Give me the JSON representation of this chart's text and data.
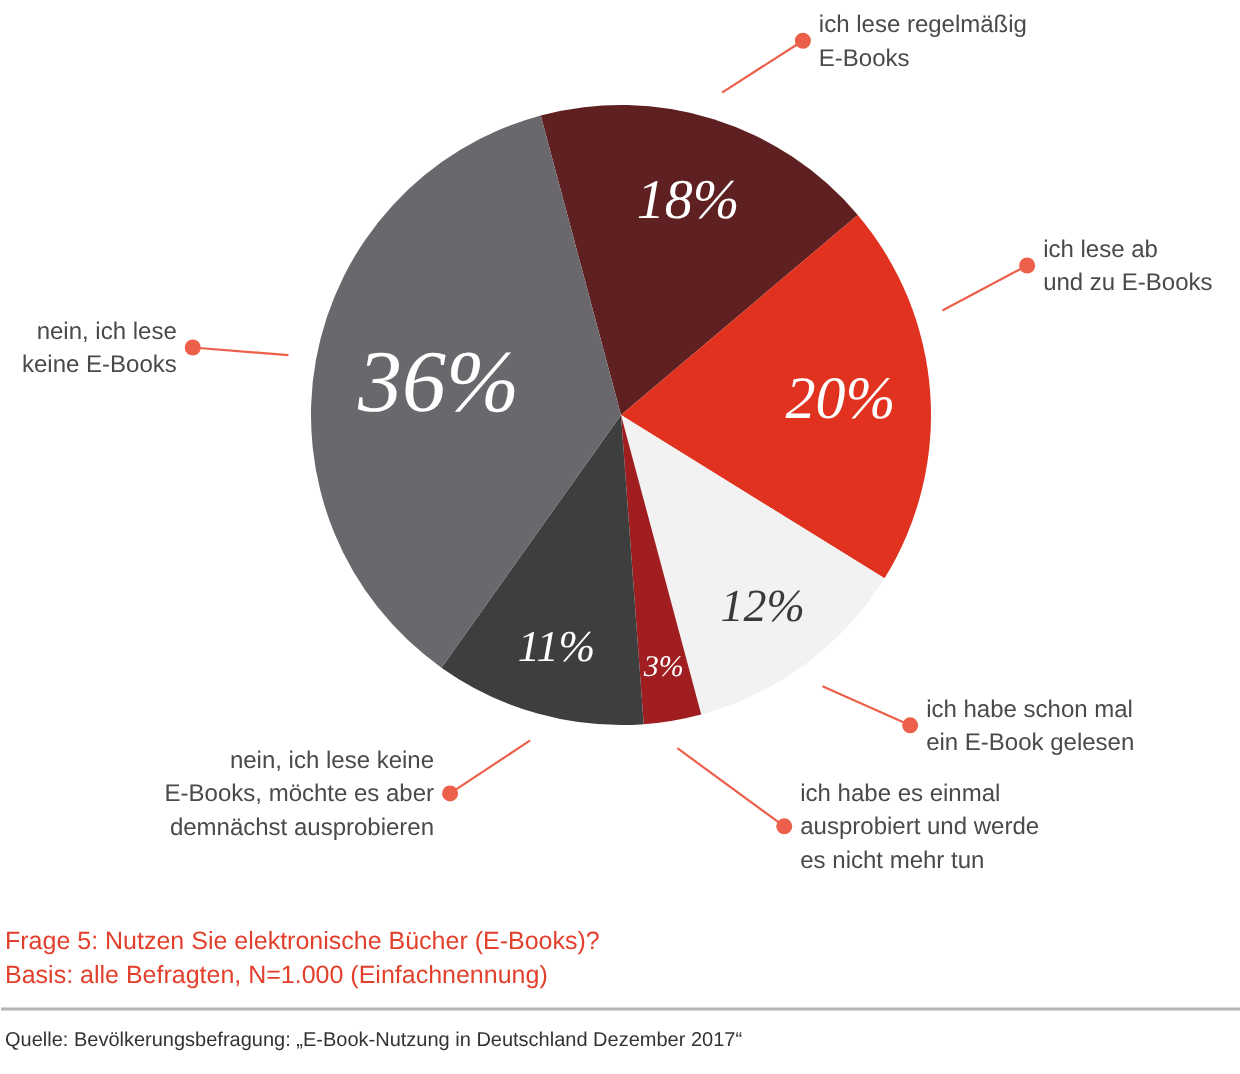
{
  "chart_data": {
    "type": "pie",
    "categories": [
      "ich lese regelmäßig\nE-Books",
      "ich lese ab\nund zu E-Books",
      "ich habe schon mal\nein E-Book gelesen",
      "ich habe es einmal\nausprobiert und werde\nes nicht mehr tun",
      "nein, ich lese keine\nE-Books, möchte es aber\ndemnächst ausprobieren",
      "nein, ich lese\nkeine E-Books"
    ],
    "values": [
      18,
      20,
      12,
      3,
      11,
      36
    ],
    "colors": [
      "#5e2020",
      "#e0321e",
      "#f2f2f2",
      "#a01e20",
      "#3f3e3f",
      "#6b686d"
    ],
    "value_labels": [
      "18%",
      "20%",
      "12%",
      "3%",
      "11%",
      "36%"
    ],
    "title": "Frage 5: Nutzen Sie elektronische Bücher (E-Books)?",
    "subtitle": "Basis: alle Befragten, N=1.000 (Einfachnennung)",
    "annotations": [
      "Quelle: Bevölkerungsbefragung: „E-Book-Nutzung in Deutschland Dezember 2017“"
    ]
  }
}
